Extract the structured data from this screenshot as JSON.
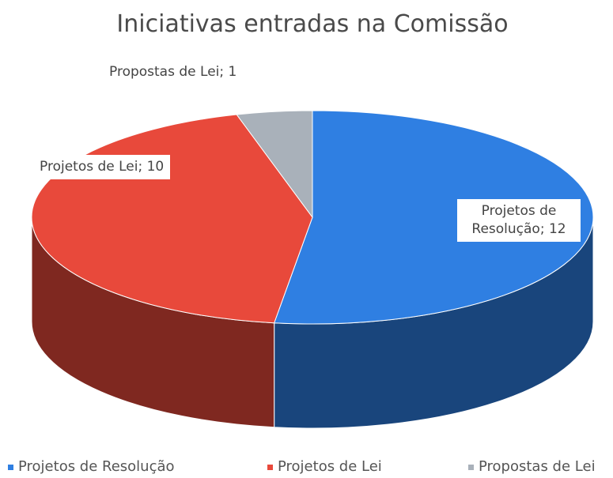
{
  "chart_data": {
    "type": "pie",
    "title": "Iniciativas entradas na Comissão",
    "categories": [
      "Projetos de Resolução",
      "Projetos de Lei",
      "Propostas de Lei"
    ],
    "values": [
      12,
      10,
      1
    ],
    "value_labels": [
      "Projetos de Resolução; 12",
      "Projetos de Lei; 10",
      "Propostas de Lei; 1"
    ],
    "colors": [
      "#2f7fe2",
      "#e8493b",
      "#a9b1ba"
    ],
    "legend": "bottom"
  }
}
